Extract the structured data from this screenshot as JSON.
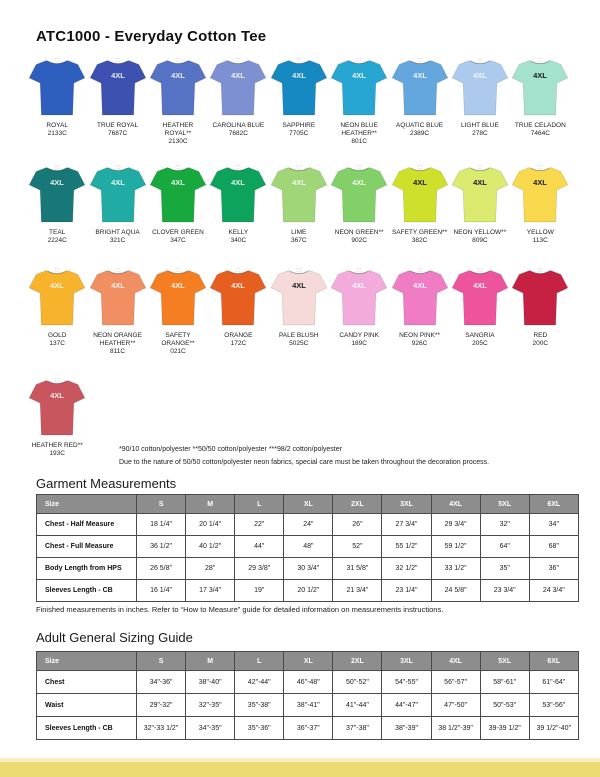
{
  "title": "ATC1000 - Everyday Cotton Tee",
  "shirt_mark": "4XL",
  "color_rows": [
    [
      {
        "name": "ROYAL",
        "code": "2133C",
        "hex": "#2e5fbe",
        "mark": "none"
      },
      {
        "name": "TRUE ROYAL",
        "code": "7687C",
        "hex": "#3c51b0",
        "mark": "white"
      },
      {
        "name": "HEATHER ROYAL**",
        "code": "2130C",
        "hex": "#5672c4",
        "mark": "white"
      },
      {
        "name": "CAROLINA BLUE",
        "code": "7682C",
        "hex": "#7d90d2",
        "mark": "white"
      },
      {
        "name": "SAPPHIRE",
        "code": "7705C",
        "hex": "#1688c2",
        "mark": "white"
      },
      {
        "name": "NEON BLUE HEATHER**",
        "code": "801C",
        "hex": "#27a6d4",
        "mark": "white"
      },
      {
        "name": "AQUATIC BLUE",
        "code": "2389C",
        "hex": "#64a6de",
        "mark": "white"
      },
      {
        "name": "LIGHT BLUE",
        "code": "278C",
        "hex": "#abcaed",
        "mark": "white"
      },
      {
        "name": "TRUE CELADON",
        "code": "7464C",
        "hex": "#a5e2cd",
        "mark": "black"
      }
    ],
    [
      {
        "name": "TEAL",
        "code": "2224C",
        "hex": "#187877",
        "mark": "white"
      },
      {
        "name": "BRIGHT AQUA",
        "code": "321C",
        "hex": "#20aca4",
        "mark": "white"
      },
      {
        "name": "CLOVER GREEN",
        "code": "347C",
        "hex": "#18a93e",
        "mark": "white"
      },
      {
        "name": "KELLY",
        "code": "340C",
        "hex": "#0da35c",
        "mark": "white"
      },
      {
        "name": "LIME",
        "code": "367C",
        "hex": "#a0d677",
        "mark": "white"
      },
      {
        "name": "NEON GREEN**",
        "code": "902C",
        "hex": "#83cf68",
        "mark": "white"
      },
      {
        "name": "SAFETY GREEN**",
        "code": "382C",
        "hex": "#cfe02c",
        "mark": "black"
      },
      {
        "name": "NEON YELLOW**",
        "code": "809C",
        "hex": "#dce96f",
        "mark": "black"
      },
      {
        "name": "YELLOW",
        "code": "113C",
        "hex": "#f8d94d",
        "mark": "black"
      }
    ],
    [
      {
        "name": "GOLD",
        "code": "137C",
        "hex": "#f7b32b",
        "mark": "white"
      },
      {
        "name": "NEON ORANGE HEATHER**",
        "code": "811C",
        "hex": "#f28f62",
        "mark": "white"
      },
      {
        "name": "SAFETY ORANGE**",
        "code": "021C",
        "hex": "#f57e22",
        "mark": "white"
      },
      {
        "name": "ORANGE",
        "code": "172C",
        "hex": "#e65f21",
        "mark": "white"
      },
      {
        "name": "PALE BLUSH",
        "code": "5025C",
        "hex": "#f6dada",
        "mark": "black"
      },
      {
        "name": "CANDY PINK",
        "code": "189C",
        "hex": "#f3abdc",
        "mark": "white"
      },
      {
        "name": "NEON PINK**",
        "code": "926C",
        "hex": "#f07cc4",
        "mark": "white"
      },
      {
        "name": "SANGRIA",
        "code": "205C",
        "hex": "#ee549c",
        "mark": "white"
      },
      {
        "name": "RED",
        "code": "200C",
        "hex": "#c62042",
        "mark": "none"
      }
    ],
    [
      {
        "name": "HEATHER RED**",
        "code": "193C",
        "hex": "#c9565e",
        "mark": "white"
      }
    ]
  ],
  "footnotes": [
    "*90/10 cotton/polyester **50/50 cotton/polyester ***98/2 cotton/polyester",
    "Due to the nature of 50/50 cotton/polyester neon fabrics, special care must be taken throughout the decoration process."
  ],
  "sections": [
    {
      "heading": "Garment Measurements",
      "columns": [
        "Size",
        "S",
        "M",
        "L",
        "XL",
        "2XL",
        "3XL",
        "4XL",
        "5XL",
        "6XL"
      ],
      "rows": [
        {
          "label": "Chest - Half Measure",
          "values": [
            "18 1/4\"",
            "20 1/4\"",
            "22\"",
            "24\"",
            "26\"",
            "27 3/4\"",
            "29 3/4\"",
            "32\"",
            "34\""
          ]
        },
        {
          "label": "Chest - Full Measure",
          "values": [
            "36 1/2\"",
            "40 1/2\"",
            "44\"",
            "48\"",
            "52\"",
            "55 1/2\"",
            "59 1/2\"",
            "64\"",
            "68\""
          ]
        },
        {
          "label": "Body Length from HPS",
          "values": [
            "26 5/8\"",
            "28\"",
            "29 3/8\"",
            "30 3/4\"",
            "31 5/8\"",
            "32 1/2\"",
            "33 1/2\"",
            "35\"",
            "36\""
          ]
        },
        {
          "label": "Sleeves Length - CB",
          "values": [
            "16 1/4\"",
            "17 3/4\"",
            "19\"",
            "20 1/2\"",
            "21 3/4\"",
            "23 1/4\"",
            "24 5/8\"",
            "23 3/4\"",
            "24 3/4\""
          ]
        }
      ],
      "note": "Finished measurements in inches. Refer to “How to Measure” guide for detailed information on measurements instructions."
    },
    {
      "heading": "Adult General Sizing Guide",
      "columns": [
        "Size",
        "S",
        "M",
        "L",
        "XL",
        "2XL",
        "3XL",
        "4XL",
        "5XL",
        "6XL"
      ],
      "rows": [
        {
          "label": "Chest",
          "values": [
            "34\"-36\"",
            "38\"-40\"",
            "42\"-44\"",
            "46\"-48\"",
            "50\"-52\"",
            "54\"-55\"",
            "56\"-57\"",
            "58\"-61\"",
            "61\"-64\""
          ]
        },
        {
          "label": "Waist",
          "values": [
            "29\"-32\"",
            "32\"-35\"",
            "35\"-38\"",
            "38\"-41\"",
            "41\"-44\"",
            "44\"-47\"",
            "47\"-50\"",
            "50\"-53\"",
            "53\"-56\""
          ]
        },
        {
          "label": "Sleeves Length - CB",
          "values": [
            "32\"-33 1/2\"",
            "34\"-35\"",
            "35\"-36\"",
            "36\"-37\"",
            "37\"-38\"",
            "38\"-39\"",
            "38 1/2\"-39\"",
            "39-39 1/2\"",
            "39 1/2\"-40\""
          ]
        }
      ],
      "note": ""
    }
  ],
  "footer": {
    "band_color": "#ecda72",
    "band_light_color": "#f6eebe"
  },
  "layout_tops": {
    "shirt_rows": [
      57,
      164,
      267,
      377
    ],
    "section_headings": [
      476,
      630
    ],
    "tables": [
      494,
      651
    ],
    "table_notes": [
      605,
      0
    ]
  }
}
